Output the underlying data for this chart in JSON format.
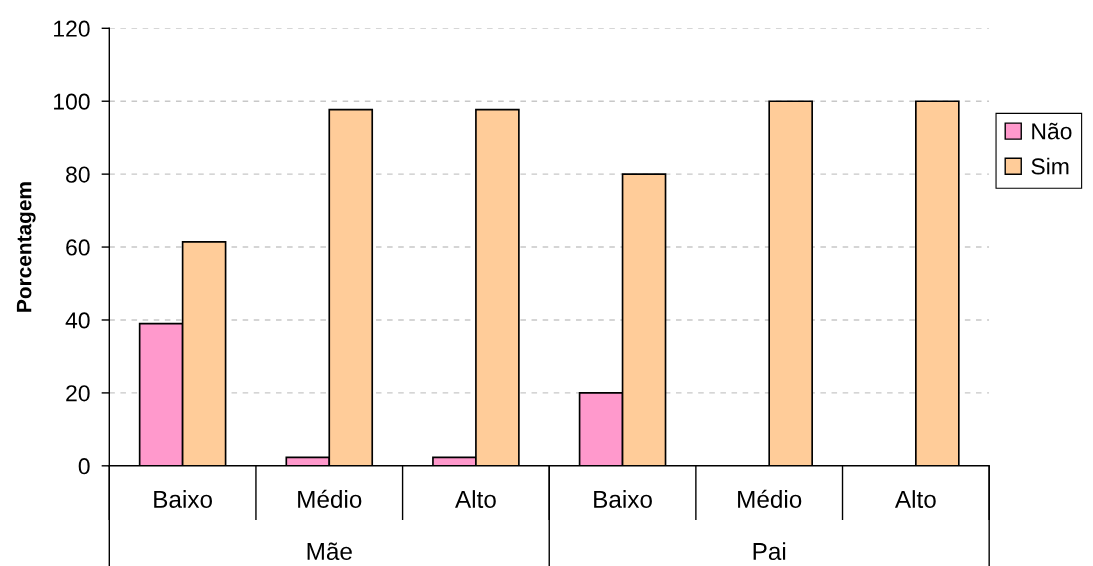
{
  "chart_data": {
    "type": "bar",
    "ylabel": "Porcentagem",
    "categories": [
      "Baixo",
      "Médio",
      "Alto",
      "Baixo",
      "Médio",
      "Alto"
    ],
    "annotations": [
      "Mãe",
      "Pai"
    ],
    "series": [
      {
        "name": "Não",
        "color": "#ff99cc",
        "values": [
          39,
          2.3,
          2.3,
          20,
          0,
          0
        ]
      },
      {
        "name": "Sim",
        "color": "#ffcc99",
        "values": [
          61.4,
          97.7,
          97.7,
          80,
          100,
          100
        ]
      }
    ],
    "ylim": [
      0,
      120
    ],
    "yticks": [
      0,
      20,
      40,
      60,
      80,
      100,
      120
    ],
    "grid": "y",
    "legend": "right"
  }
}
